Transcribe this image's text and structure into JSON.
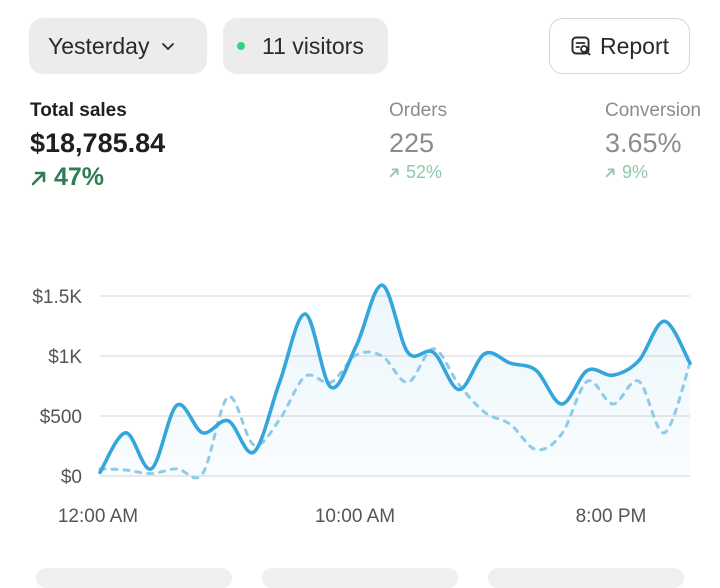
{
  "filters": {
    "date_range": "Yesterday",
    "visitors": "11 visitors"
  },
  "actions": {
    "report_label": "Report"
  },
  "metrics": {
    "total_sales": {
      "label": "Total sales",
      "value": "$18,785.84",
      "change": "47%"
    },
    "orders": {
      "label": "Orders",
      "value": "225",
      "change": "52%"
    },
    "conversion": {
      "label": "Conversion",
      "value": "3.65%",
      "change": "9%"
    }
  },
  "colors": {
    "accent": "#35a6dc",
    "positive": "#2f7d55",
    "live_dot": "#2fd67f"
  },
  "chart_data": {
    "type": "line",
    "ylim": [
      0,
      1700
    ],
    "y_ticks": [
      {
        "value": 0,
        "label": "$0"
      },
      {
        "value": 500,
        "label": "$500"
      },
      {
        "value": 1000,
        "label": "$1K"
      },
      {
        "value": 1500,
        "label": "$1.5K"
      }
    ],
    "x_tick_labels": [
      "12:00 AM",
      "10:00 AM",
      "8:00 PM"
    ],
    "grid": true,
    "series": [
      {
        "style": "solid",
        "color": "#35a6dc",
        "values": [
          30,
          360,
          60,
          590,
          360,
          460,
          200,
          780,
          1350,
          740,
          1090,
          1590,
          1030,
          1030,
          720,
          1020,
          940,
          880,
          600,
          880,
          840,
          960,
          1290,
          940
        ]
      },
      {
        "style": "dashed",
        "color": "#8fcbe8",
        "values": [
          60,
          50,
          20,
          60,
          20,
          660,
          260,
          470,
          830,
          780,
          1010,
          1000,
          780,
          1060,
          760,
          530,
          430,
          220,
          350,
          790,
          600,
          790,
          360,
          940
        ]
      }
    ]
  }
}
